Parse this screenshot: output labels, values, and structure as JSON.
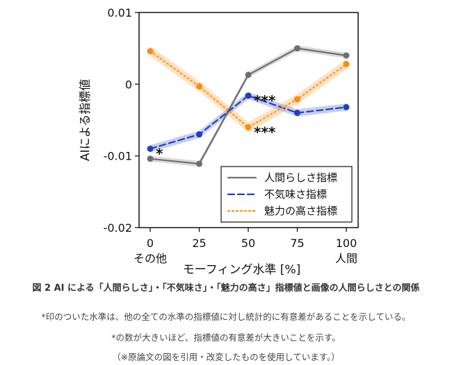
{
  "chart_data": {
    "type": "line",
    "categories": [
      "0",
      "25",
      "50",
      "75",
      "100"
    ],
    "x": [
      0,
      25,
      50,
      75,
      100
    ],
    "x_extra_labels": {
      "0": "その他",
      "100": "人間"
    },
    "xlabel": "モーフィング水準 [%]",
    "ylabel": "AIによる指標値",
    "ylim": [
      -0.02,
      0.01
    ],
    "yticks": [
      "0.01",
      "0",
      "-0.01",
      "-0.02"
    ],
    "ytick_values": [
      0.01,
      0,
      -0.01,
      -0.02
    ],
    "legend_position": "lower-right",
    "grid": false,
    "series": [
      {
        "name": "人間らしさ指標",
        "color": "#6e6e6e",
        "style": "solid",
        "values": [
          -0.0104,
          -0.0111,
          0.0013,
          0.005,
          0.004
        ],
        "band": 0.0004
      },
      {
        "name": "不気味さ指標",
        "color": "#1f3fbf",
        "style": "dashed",
        "values": [
          -0.009,
          -0.007,
          -0.0016,
          -0.004,
          -0.0032
        ],
        "band": 0.0005
      },
      {
        "name": "魅力の高さ指標",
        "color": "#ff8c0a",
        "style": "dotted",
        "values": [
          0.0046,
          -0.0003,
          -0.006,
          -0.0021,
          0.0028
        ],
        "band": 0.0007
      }
    ],
    "annotations": [
      {
        "text": "*",
        "x": 0,
        "y": -0.009
      },
      {
        "text": "***",
        "x": 50,
        "y": -0.0016
      },
      {
        "text": "***",
        "x": 50,
        "y": -0.006
      }
    ]
  },
  "caption": {
    "title": "図 2 AI による「人間らしさ」・「不気味さ」・「魅力の高さ」指標値と画像の人間らしさとの関係",
    "note1": "*印のついた水準は、他の全ての水準の指標値に対し統計的に有意差があることを示している。",
    "note2": "*の数が大きいほど、指標値の有意差が大きいことを示す。",
    "note3": "（※原論文の図を引用・改変したものを使用しています。）"
  }
}
